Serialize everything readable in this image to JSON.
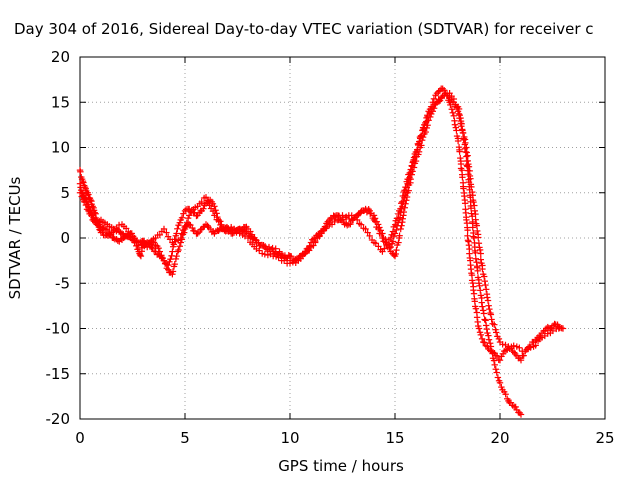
{
  "chart_data": {
    "type": "scatter",
    "title": "Day 304 of 2016, Sidereal Day-to-day VTEC variation (SDTVAR) for receiver c",
    "xlabel": "GPS time / hours",
    "ylabel": "SDTVAR / TECUs",
    "xlim": [
      0,
      25
    ],
    "ylim": [
      -20,
      20
    ],
    "x_ticks": [
      "0",
      "5",
      "10",
      "15",
      "20",
      "25"
    ],
    "y_ticks": [
      "20",
      "15",
      "10",
      "5",
      "0",
      "-5",
      "-10",
      "-15",
      "-20"
    ],
    "grid": true,
    "marker": "plus",
    "color": "#ff0000",
    "series": [
      {
        "x": [
          0.0,
          0.1,
          0.2,
          0.3,
          0.4,
          0.5,
          0.6,
          0.7,
          0.8,
          0.9,
          1.0,
          1.2,
          1.4,
          1.6,
          1.8,
          2.0,
          2.2,
          2.4,
          2.6,
          2.8,
          2.9,
          3.0,
          3.2,
          3.4,
          3.6,
          3.8,
          4.0,
          4.2,
          4.4,
          4.6,
          4.8,
          5.0,
          5.2,
          5.4,
          5.6,
          5.8,
          6.0,
          6.2,
          6.4,
          6.6,
          6.8,
          7.0,
          7.2,
          7.4,
          7.6,
          7.8,
          8.0,
          8.2,
          8.4,
          8.6,
          8.8,
          9.0,
          9.2,
          9.4,
          9.6,
          9.8,
          10.0,
          10.2,
          10.4,
          10.6,
          10.8,
          11.0,
          11.2,
          11.4,
          11.6,
          11.8,
          12.0,
          12.2,
          12.4,
          12.6,
          12.8,
          13.0,
          13.2,
          13.4,
          13.6,
          13.8,
          14.0,
          14.2,
          14.4,
          14.6,
          14.8,
          15.0,
          15.2,
          15.4,
          15.6,
          15.8,
          16.0,
          16.2,
          16.4,
          16.6,
          16.8,
          17.0,
          17.2,
          17.4,
          17.6,
          17.8,
          18.0,
          18.2,
          18.4,
          18.6,
          18.8,
          19.0,
          19.2,
          19.4,
          19.6,
          19.8,
          20.0,
          20.2,
          20.4,
          20.6,
          20.8,
          21.0,
          21.2,
          21.4,
          21.6,
          21.8,
          22.0,
          22.2,
          22.4,
          22.6,
          22.8,
          23.0
        ],
        "y": [
          7.5,
          6.5,
          5.8,
          5.2,
          4.8,
          4.2,
          3.5,
          2.8,
          2.0,
          1.2,
          0.6,
          0.3,
          0.4,
          0.8,
          0.9,
          0.5,
          0.2,
          0.0,
          -0.5,
          -1.5,
          -2.0,
          -0.8,
          -0.5,
          -0.3,
          -0.8,
          -1.5,
          -2.5,
          -3.0,
          -1.5,
          0.5,
          2.0,
          3.0,
          3.2,
          2.8,
          2.5,
          3.0,
          3.8,
          4.2,
          3.5,
          2.0,
          1.0,
          0.8,
          0.5,
          0.8,
          1.0,
          0.8,
          0.5,
          0.0,
          -0.5,
          -0.8,
          -1.0,
          -1.2,
          -1.5,
          -1.8,
          -2.0,
          -2.2,
          -2.0,
          -2.5,
          -2.2,
          -1.8,
          -1.2,
          -0.5,
          0.0,
          0.5,
          1.0,
          1.8,
          2.2,
          2.5,
          2.0,
          1.5,
          1.5,
          2.0,
          2.5,
          3.0,
          3.2,
          3.0,
          2.0,
          1.0,
          0.0,
          -0.8,
          -1.0,
          0.5,
          2.0,
          4.0,
          6.0,
          8.0,
          9.5,
          11.0,
          12.5,
          14.0,
          15.0,
          16.0,
          16.5,
          16.0,
          15.0,
          13.5,
          11.0,
          7.0,
          2.0,
          -3.0,
          -7.0,
          -10.0,
          -11.5,
          -12.0,
          -12.5,
          -13.0,
          -13.5,
          -12.5,
          -12.0,
          -12.5,
          -13.0,
          -13.5,
          -12.5,
          -12.0,
          -11.5,
          -11.0,
          -10.5,
          -10.0,
          -10.0,
          -9.5,
          -9.8,
          -10.0
        ]
      },
      {
        "x": [
          0.0,
          0.1,
          0.2,
          0.3,
          0.4,
          0.5,
          0.6,
          0.7,
          0.8,
          0.9,
          1.0,
          1.2,
          1.4,
          1.6,
          1.8,
          2.0,
          2.2,
          2.4,
          2.6,
          2.8,
          3.0,
          3.2,
          3.4,
          3.6,
          3.8,
          4.0,
          4.2,
          4.4,
          4.6,
          4.8,
          5.0,
          5.2,
          5.4,
          5.6,
          5.8,
          6.0,
          6.2,
          6.4,
          6.6,
          6.8,
          7.0,
          7.2,
          7.4,
          7.6,
          7.8,
          8.0,
          8.5,
          9.0,
          9.5,
          10.0,
          10.5,
          11.0,
          11.5,
          12.0,
          12.5,
          13.0,
          13.5,
          14.0,
          14.2,
          14.4,
          14.6,
          14.8,
          15.0,
          15.2,
          15.4,
          15.6,
          15.8,
          16.0,
          16.2,
          16.4,
          16.6,
          16.8,
          17.0,
          17.2,
          17.4,
          17.6,
          17.8,
          18.0,
          18.2,
          18.4,
          18.6,
          18.8,
          19.0,
          19.2,
          19.4,
          19.6,
          19.8,
          20.0,
          20.2,
          20.4,
          20.6,
          20.8,
          21.0
        ],
        "y": [
          6.0,
          5.0,
          4.5,
          4.0,
          3.5,
          3.0,
          2.5,
          2.0,
          1.8,
          1.5,
          1.2,
          1.0,
          0.5,
          0.0,
          -0.3,
          -0.2,
          0.2,
          0.5,
          0.0,
          -0.5,
          -0.3,
          -0.5,
          -1.0,
          -1.5,
          -2.0,
          -2.5,
          -3.5,
          -4.0,
          -2.0,
          -0.5,
          1.0,
          1.5,
          0.8,
          0.5,
          1.0,
          1.5,
          1.0,
          0.5,
          0.8,
          1.0,
          1.2,
          1.0,
          0.8,
          1.0,
          1.2,
          1.0,
          -0.5,
          -1.0,
          -1.5,
          -2.5,
          -2.0,
          -1.0,
          0.5,
          2.0,
          2.5,
          2.0,
          3.0,
          2.5,
          1.5,
          0.5,
          -0.5,
          -1.5,
          -2.0,
          0.0,
          2.5,
          5.0,
          7.0,
          8.5,
          10.0,
          11.5,
          13.0,
          14.0,
          15.0,
          15.5,
          16.0,
          15.5,
          15.0,
          14.0,
          12.0,
          9.0,
          4.0,
          -1.0,
          -5.0,
          -8.0,
          -10.5,
          -12.5,
          -14.5,
          -16.0,
          -17.0,
          -18.0,
          -18.5,
          -19.0,
          -19.5
        ]
      },
      {
        "x": [
          0.0,
          0.2,
          0.4,
          0.6,
          0.8,
          1.0,
          1.3,
          1.6,
          2.0,
          2.4,
          2.8,
          3.2,
          3.6,
          4.0,
          4.4,
          4.8,
          5.2,
          5.6,
          6.0,
          6.4,
          6.8,
          7.2,
          7.6,
          8.0,
          8.4,
          8.8,
          9.2,
          9.6,
          10.0,
          10.4,
          10.8,
          11.2,
          11.6,
          12.0,
          12.4,
          12.8,
          13.2,
          13.6,
          14.0,
          14.4,
          14.8,
          15.2,
          15.6,
          16.0,
          16.4,
          16.8,
          17.2,
          17.6,
          18.0,
          18.4,
          18.8,
          19.2,
          19.6,
          20.0,
          20.4,
          20.8,
          21.2,
          21.6,
          22.0,
          22.4,
          22.8
        ],
        "y": [
          5.0,
          4.0,
          3.0,
          2.0,
          1.5,
          2.0,
          1.5,
          1.0,
          1.5,
          0.5,
          -0.8,
          -1.0,
          0.0,
          1.0,
          -0.5,
          0.0,
          2.5,
          3.5,
          4.5,
          2.5,
          1.0,
          1.2,
          0.5,
          0.0,
          -1.2,
          -1.8,
          -2.0,
          -2.5,
          -2.8,
          -2.5,
          -1.5,
          -0.5,
          1.0,
          1.5,
          2.0,
          2.5,
          2.0,
          1.0,
          -0.5,
          -1.5,
          0.0,
          3.0,
          6.5,
          9.5,
          12.5,
          14.5,
          15.5,
          16.0,
          14.5,
          10.0,
          3.0,
          -4.0,
          -9.0,
          -11.5,
          -12.0,
          -12.0,
          -12.5,
          -12.0,
          -11.0,
          -10.5,
          -10.0
        ]
      }
    ]
  }
}
